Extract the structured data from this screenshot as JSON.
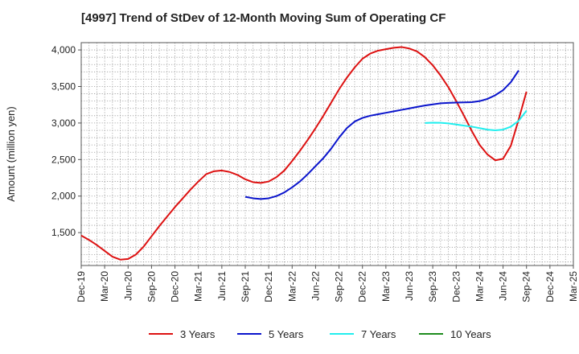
{
  "chart_data": {
    "type": "line",
    "title": "[4997]  Trend of StDev of 12-Month Moving Sum of Operating CF",
    "xlabel": "",
    "ylabel": "Amount (million yen)",
    "ylim": [
      1050,
      4100
    ],
    "yticks": [
      1500,
      2000,
      2500,
      3000,
      3500,
      4000
    ],
    "ytick_labels": [
      "1,500",
      "2,000",
      "2,500",
      "3,000",
      "3,500",
      "4,000"
    ],
    "xtick_labels": [
      "Dec-19",
      "Mar-20",
      "Jun-20",
      "Sep-20",
      "Dec-20",
      "Mar-21",
      "Jun-21",
      "Sep-21",
      "Dec-21",
      "Mar-22",
      "Jun-22",
      "Sep-22",
      "Dec-22",
      "Mar-23",
      "Jun-23",
      "Sep-23",
      "Dec-23",
      "Mar-24",
      "Jun-24",
      "Sep-24",
      "Dec-24",
      "Mar-25"
    ],
    "grid": true,
    "legend_position": "bottom",
    "series": [
      {
        "name": "3 Years",
        "color": "#dd1111",
        "start_index": 0,
        "values": [
          1460,
          1400,
          1330,
          1250,
          1170,
          1130,
          1140,
          1200,
          1310,
          1450,
          1590,
          1720,
          1850,
          1970,
          2090,
          2200,
          2300,
          2340,
          2350,
          2330,
          2290,
          2230,
          2190,
          2180,
          2200,
          2260,
          2350,
          2480,
          2620,
          2770,
          2930,
          3100,
          3280,
          3460,
          3620,
          3760,
          3880,
          3950,
          3990,
          4010,
          4030,
          4040,
          4020,
          3980,
          3900,
          3790,
          3650,
          3490,
          3300,
          3100,
          2890,
          2700,
          2570,
          2490,
          2510,
          2690,
          3050,
          3430
        ]
      },
      {
        "name": "5 Years",
        "color": "#0a14cc",
        "start_index": 21,
        "values": [
          1990,
          1970,
          1960,
          1970,
          2000,
          2050,
          2120,
          2200,
          2300,
          2410,
          2520,
          2650,
          2800,
          2930,
          3020,
          3070,
          3100,
          3120,
          3140,
          3160,
          3180,
          3200,
          3220,
          3240,
          3255,
          3270,
          3275,
          3280,
          3282,
          3285,
          3300,
          3330,
          3380,
          3450,
          3560,
          3720
        ]
      },
      {
        "name": "7 Years",
        "color": "#22eeee",
        "start_index": 44,
        "values": [
          3000,
          3005,
          3003,
          2995,
          2980,
          2965,
          2950,
          2930,
          2910,
          2900,
          2910,
          2950,
          3030,
          3170
        ]
      },
      {
        "name": "10 Years",
        "color": "#1e8c1e",
        "start_index": 0,
        "values": []
      }
    ]
  }
}
